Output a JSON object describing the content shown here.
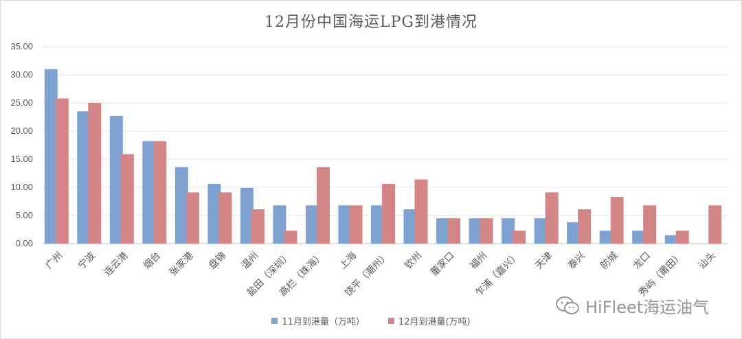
{
  "chart_data": {
    "type": "bar",
    "title": "12月份中国海运LPG到港情况",
    "categories": [
      "广州",
      "宁波",
      "连云港",
      "烟台",
      "张家港",
      "盘锦",
      "温州",
      "盐田（深圳）",
      "高栏（珠海）",
      "上海",
      "饶平（潮州）",
      "钦州",
      "董家口",
      "福州",
      "乍浦（嘉兴）",
      "天津",
      "泰兴",
      "防城",
      "龙口",
      "秀屿（莆田）",
      "汕头"
    ],
    "series": [
      {
        "name": "11月到港量（万吨）",
        "color": "#7ea3d2",
        "values": [
          31.0,
          23.5,
          22.7,
          18.2,
          13.6,
          10.6,
          9.9,
          6.8,
          6.8,
          6.8,
          6.8,
          6.1,
          4.5,
          4.5,
          4.5,
          4.5,
          3.8,
          2.3,
          2.3,
          1.5,
          0
        ]
      },
      {
        "name": "12月到港量(万吨)",
        "color": "#d48585",
        "values": [
          25.8,
          25.0,
          15.9,
          18.2,
          9.1,
          9.1,
          6.1,
          2.3,
          13.6,
          6.8,
          10.6,
          11.4,
          4.5,
          4.5,
          2.3,
          9.1,
          6.1,
          8.3,
          6.8,
          2.3,
          6.8
        ]
      }
    ],
    "ylim": [
      0,
      35
    ],
    "yticks": [
      "0.00",
      "5.00",
      "10.00",
      "15.00",
      "20.00",
      "25.00",
      "30.00",
      "35.00"
    ],
    "grid": true,
    "legend": "bottom"
  },
  "watermark": {
    "text": "HiFleet海运油气",
    "icon": "wechat-icon"
  }
}
